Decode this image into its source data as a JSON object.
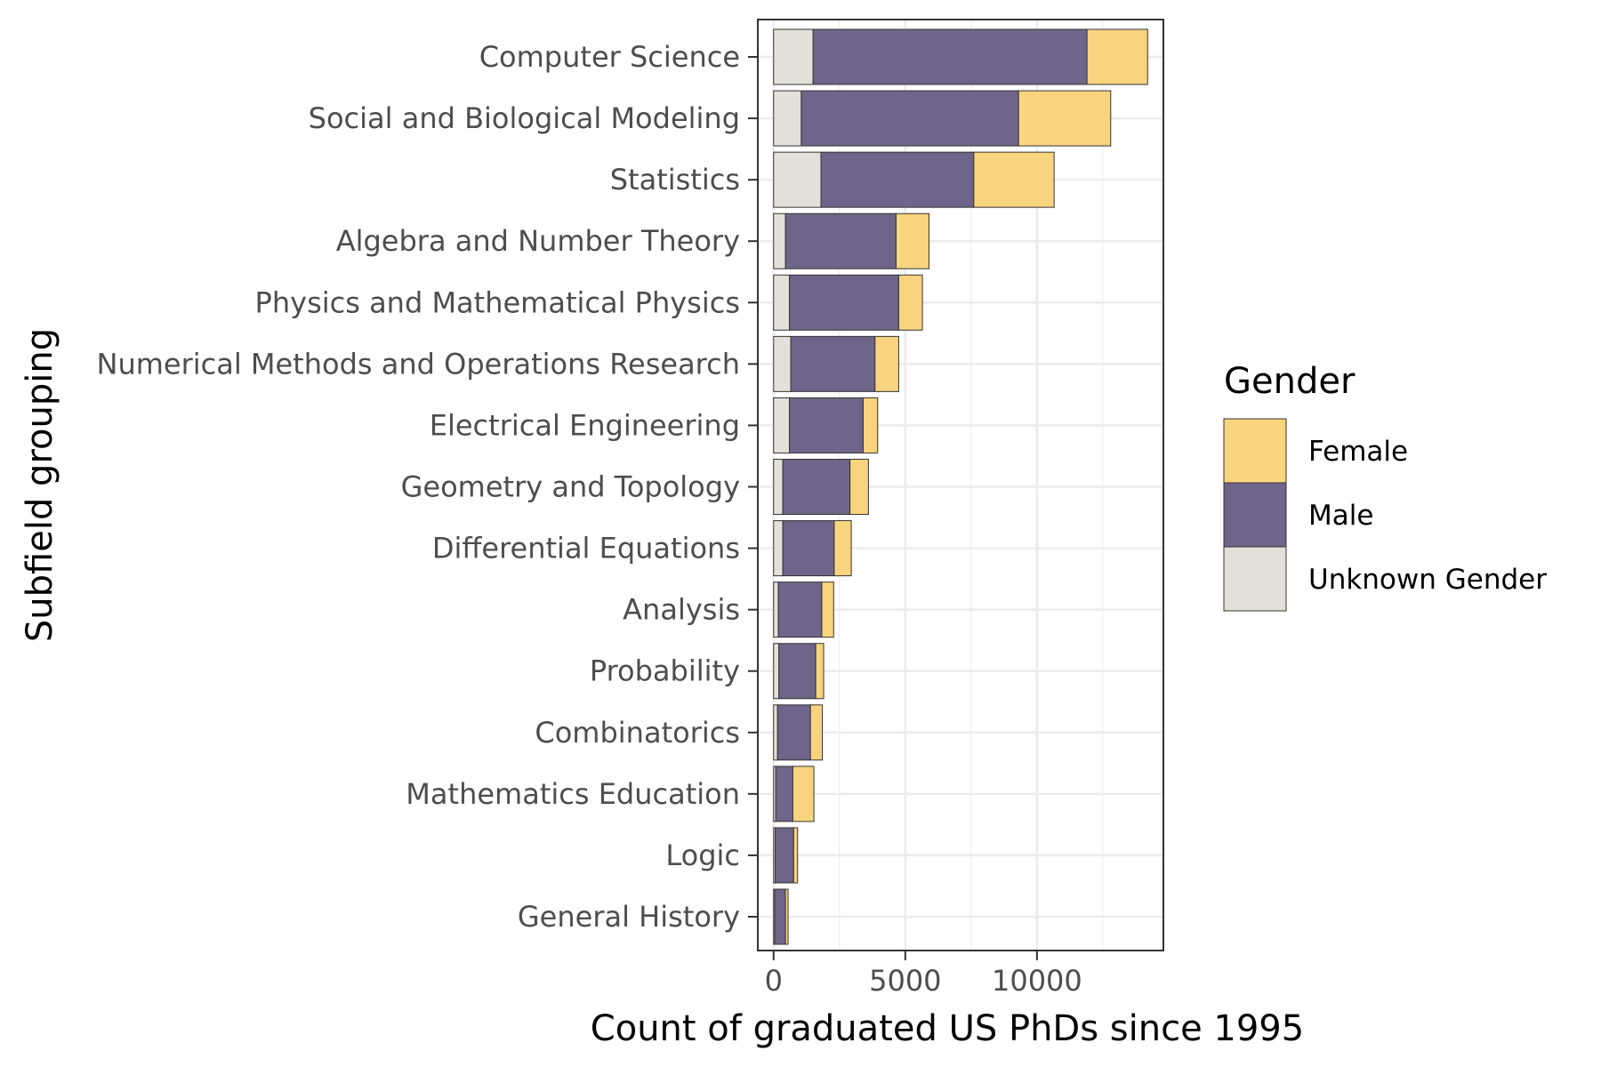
{
  "chart_data": {
    "type": "bar",
    "orientation": "horizontal",
    "stacked": true,
    "title": "",
    "xlabel": "Count of graduated US PhDs since 1995",
    "ylabel": "Subfield grouping",
    "xlim": [
      -600,
      14800
    ],
    "xticks": [
      0,
      5000,
      10000
    ],
    "x_tick_labels": [
      "0",
      "5000",
      "10000"
    ],
    "grid": true,
    "legend_title": "Gender",
    "legend_position": "right",
    "categories": [
      "Computer Science",
      "Social and Biological Modeling",
      "Statistics",
      "Algebra and Number Theory",
      "Physics and Mathematical Physics",
      "Numerical Methods and Operations Research",
      "Electrical Engineering",
      "Geometry and Topology",
      "Differential Equations",
      "Analysis",
      "Probability",
      "Combinatorics",
      "Mathematics Education",
      "Logic",
      "General History"
    ],
    "series": [
      {
        "name": "Unknown Gender",
        "color": "#e3e0da",
        "values": [
          1500,
          1050,
          1800,
          450,
          600,
          650,
          600,
          350,
          350,
          180,
          200,
          150,
          80,
          60,
          40
        ]
      },
      {
        "name": "Male",
        "color": "#6f6489",
        "values": [
          10400,
          8250,
          5800,
          4200,
          4150,
          3200,
          2800,
          2550,
          1950,
          1650,
          1400,
          1250,
          650,
          700,
          410
        ]
      },
      {
        "name": "Female",
        "color": "#f9d47e",
        "values": [
          2300,
          3500,
          3050,
          1250,
          900,
          900,
          550,
          700,
          650,
          450,
          300,
          450,
          800,
          150,
          100
        ]
      }
    ],
    "legend_order": [
      "Female",
      "Male",
      "Unknown Gender"
    ]
  }
}
